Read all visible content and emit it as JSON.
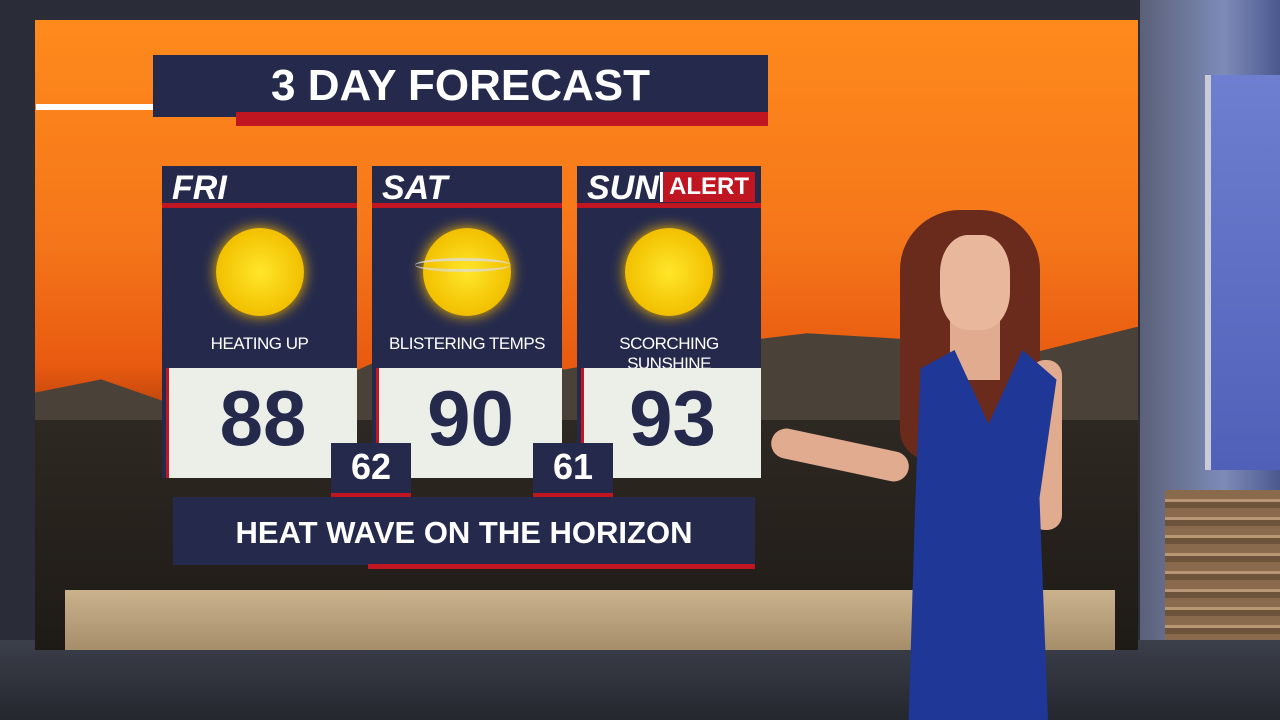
{
  "title": "3 DAY FORECAST",
  "days": [
    {
      "day": "FRI",
      "condition": "HEATING UP",
      "icon": "sun-icon",
      "high": "88"
    },
    {
      "day": "SAT",
      "condition": "BLISTERING TEMPS",
      "icon": "hazy-sun-icon",
      "high": "90"
    },
    {
      "day": "SUN",
      "badge": "ALERT",
      "condition": "SCORCHING SUNSHINE",
      "icon": "sun-icon",
      "high": "93"
    }
  ],
  "lows": [
    "62",
    "61"
  ],
  "banner": "HEAT WAVE ON THE HORIZON",
  "colors": {
    "navy": "#252a4d",
    "red": "#c01622",
    "orange": "#f5761a",
    "sun": "#f2c000"
  }
}
